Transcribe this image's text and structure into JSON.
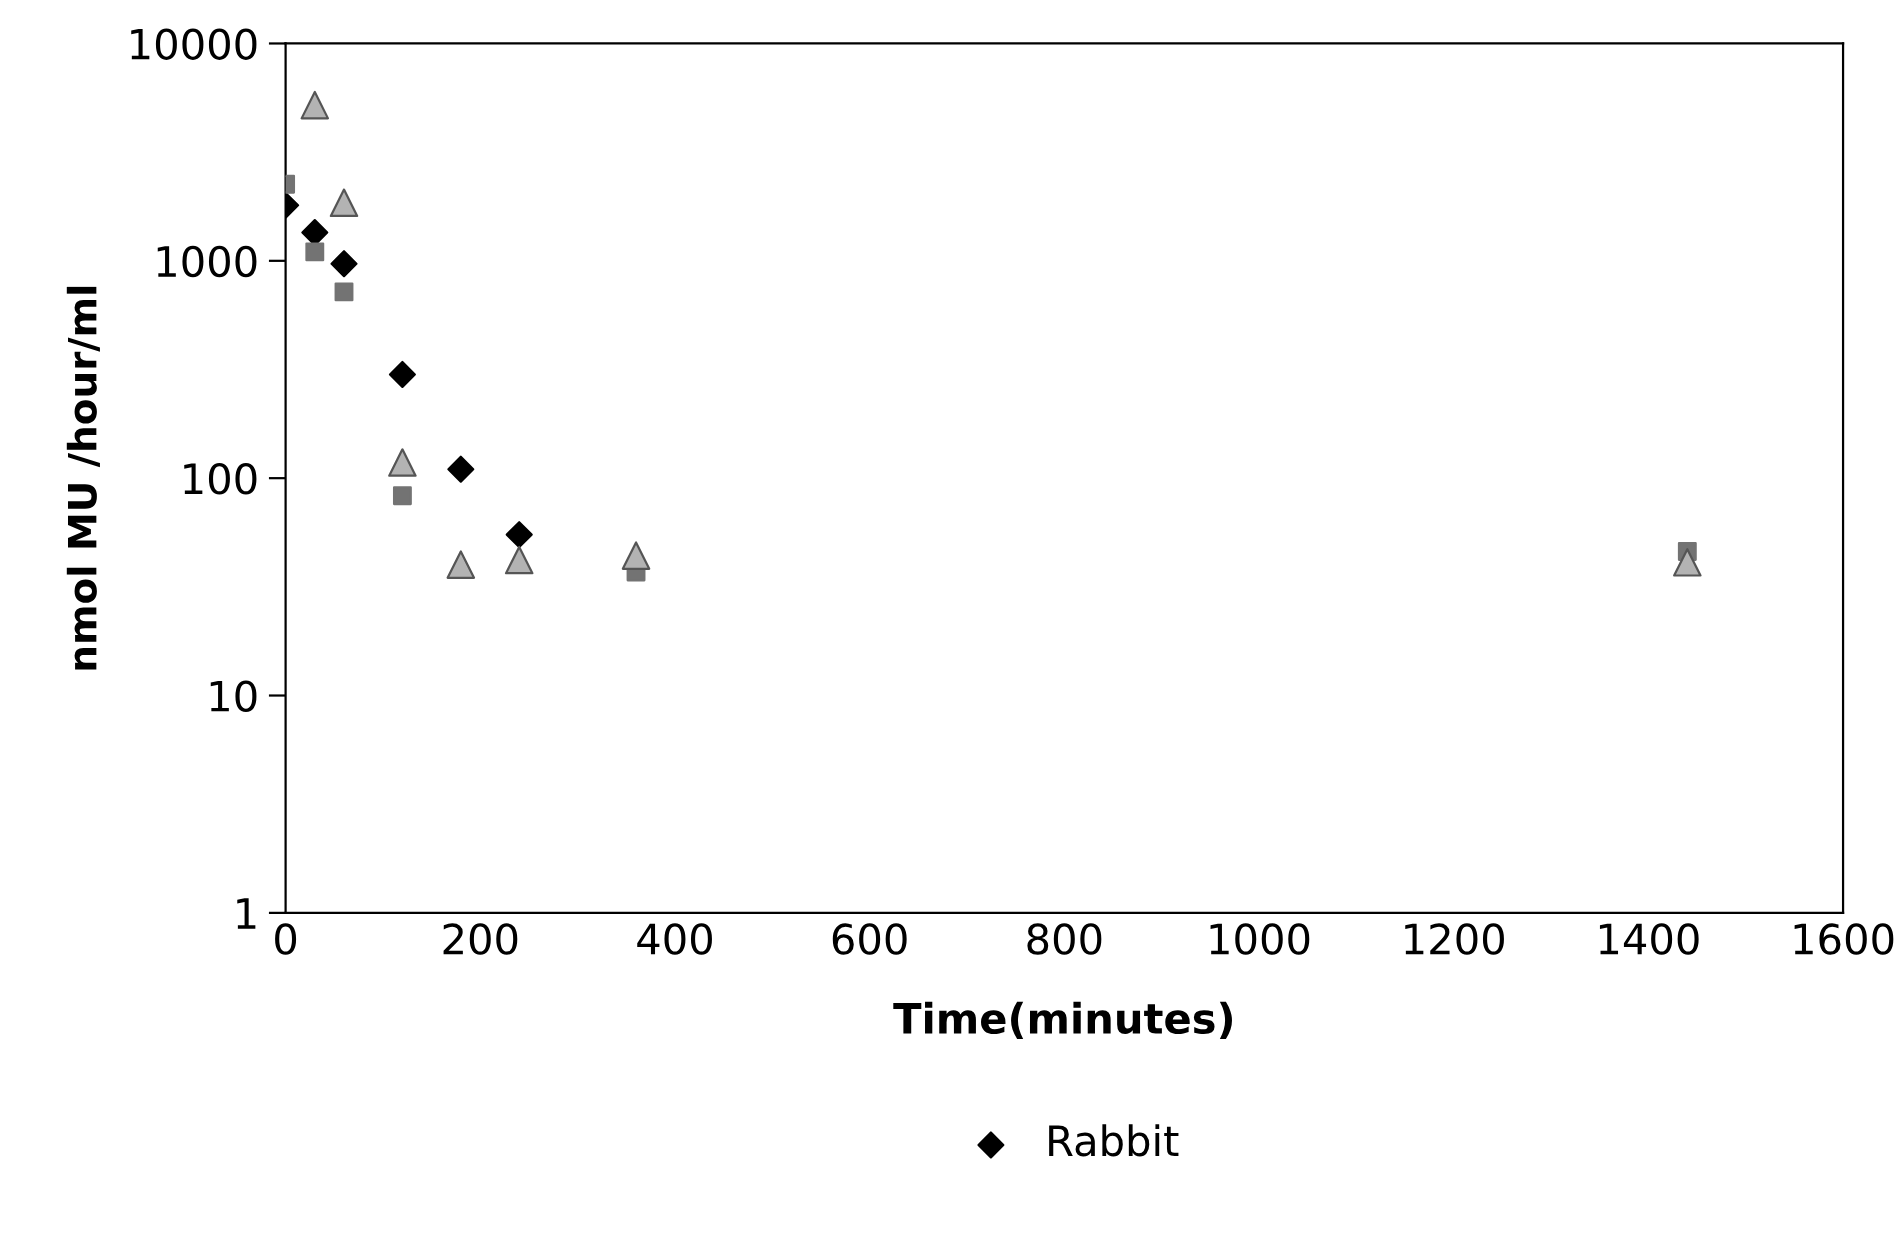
{
  "chart_data": {
    "type": "scatter",
    "xlabel": "Time(minutes)",
    "ylabel": "nmol MU /hour/ml",
    "log": "y",
    "xlim": [
      0,
      1600
    ],
    "xticks": [
      0,
      200,
      400,
      600,
      800,
      1000,
      1200,
      1400,
      1600
    ],
    "ylim": [
      1,
      10000
    ],
    "yticks": [
      1,
      10,
      100,
      1000,
      10000
    ],
    "grid": false,
    "legend": "bottom",
    "series": [
      {
        "name": "Rabbit",
        "color": "#000000",
        "marker": "diamond",
        "x": [
          0,
          30,
          60,
          120,
          180,
          240
        ],
        "values": [
          1800,
          1350,
          970,
          300,
          110,
          55
        ]
      },
      {
        "color": "#737373",
        "marker": "square",
        "x": [
          0,
          30,
          60,
          120,
          180,
          240,
          360,
          1440
        ],
        "values": [
          2250,
          1100,
          720,
          83,
          null,
          null,
          37,
          46
        ]
      },
      {
        "color": "#b3b3b3",
        "marker": "triangle",
        "x": [
          30,
          60,
          120,
          180,
          240,
          360,
          1440
        ],
        "values": [
          5200,
          1850,
          118,
          40,
          42,
          44,
          41
        ]
      }
    ]
  }
}
